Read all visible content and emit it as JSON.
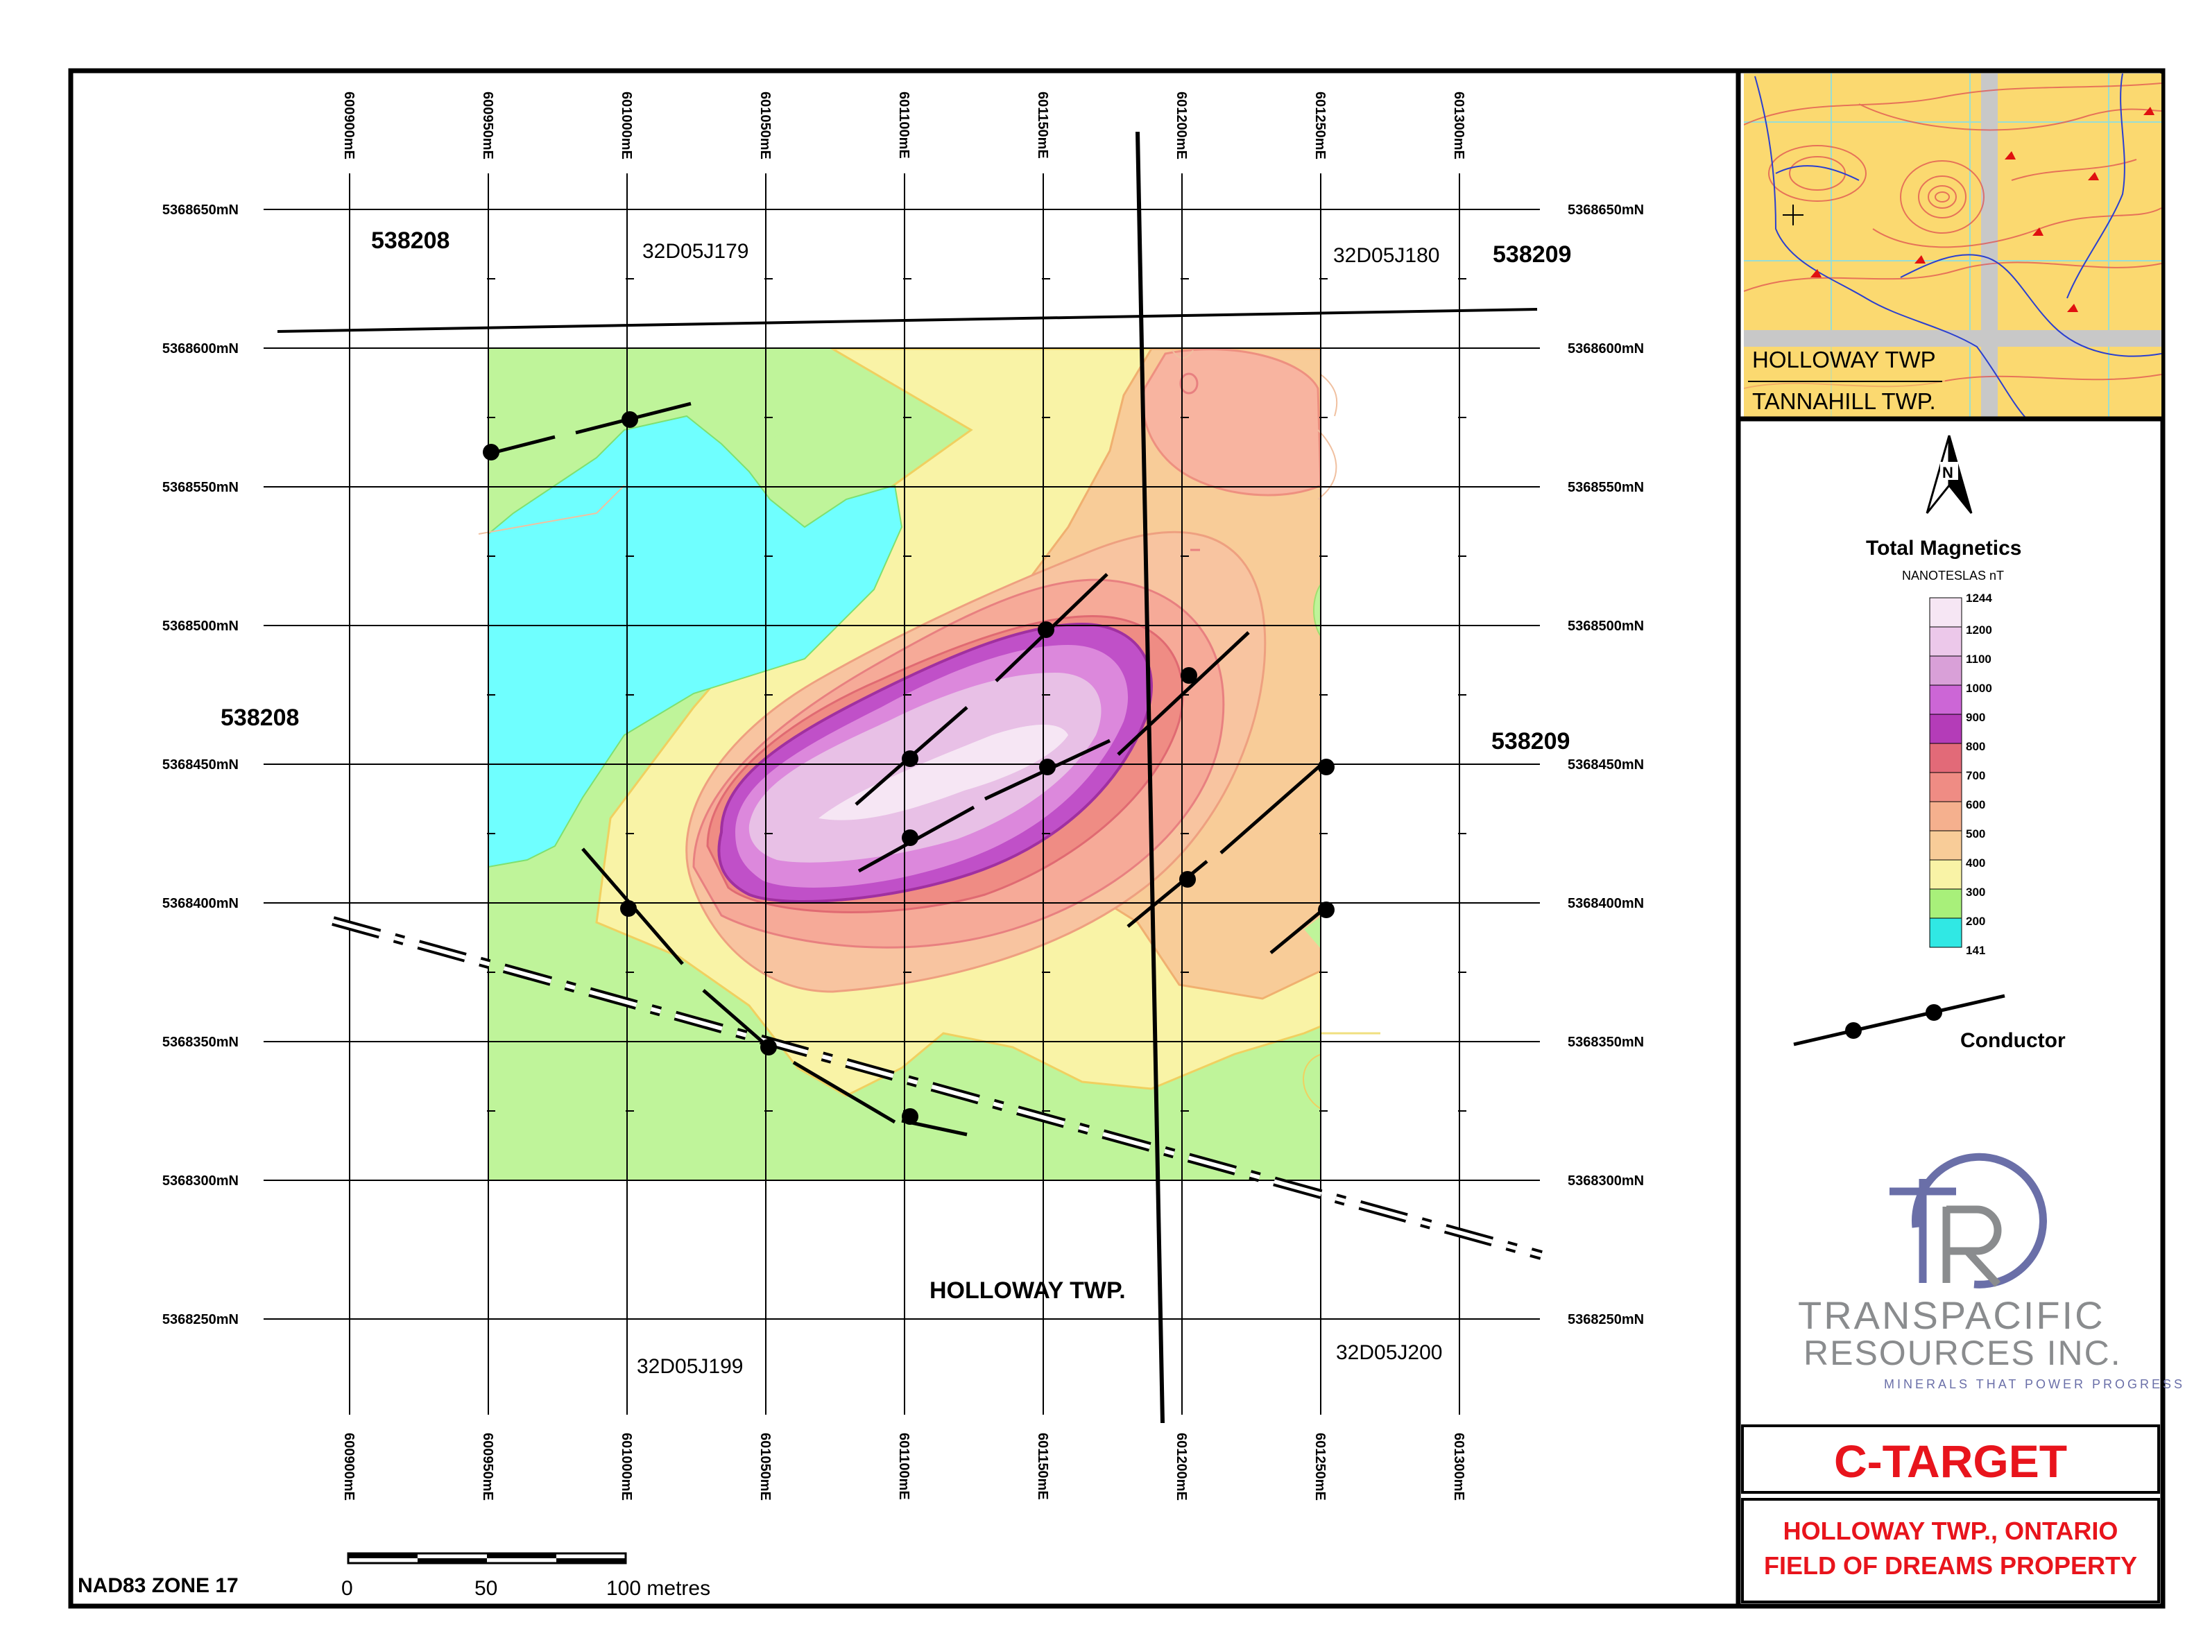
{
  "map": {
    "grid_eastings": [
      "600900mE",
      "600950mE",
      "601000mE",
      "601050mE",
      "601100mE",
      "601150mE",
      "601200mE",
      "601250mE",
      "601300mE"
    ],
    "grid_northings": [
      "5368650mN",
      "5368600mN",
      "5368550mN",
      "5368500mN",
      "5368450mN",
      "5368400mN",
      "5368350mN",
      "5368300mN",
      "5368250mN"
    ],
    "claims": {
      "c538208_top": "538208",
      "c538209_top": "538209",
      "c538208_mid": "538208",
      "c538209_mid": "538209",
      "cell_179": "32D05J179",
      "cell_180": "32D05J180",
      "cell_199": "32D05J199",
      "cell_200": "32D05J200"
    },
    "township_label": "HOLLOWAY TWP.",
    "datum": "NAD83 ZONE 17",
    "scale_bar": {
      "tick_0": "0",
      "tick_50": "50",
      "tick_100": "100 metres"
    }
  },
  "inset": {
    "label_holloway": "HOLLOWAY TWP",
    "label_tannahill": "TANNAHILL TWP."
  },
  "north_arrow": {
    "letter": "N"
  },
  "legend": {
    "title": "Total Magnetics",
    "units": "NANOTESLAS nT",
    "levels": [
      {
        "label": "1244",
        "color": "#f6e6f4"
      },
      {
        "label": "1200",
        "color": "#ecc8ea"
      },
      {
        "label": "1100",
        "color": "#d9a0d8"
      },
      {
        "label": "1000",
        "color": "#cc66d6"
      },
      {
        "label": "900",
        "color": "#b43cb8"
      },
      {
        "label": "800",
        "color": "#e26a78"
      },
      {
        "label": "700",
        "color": "#ef8c84"
      },
      {
        "label": "600",
        "color": "#f5b08e"
      },
      {
        "label": "500",
        "color": "#f8cc98"
      },
      {
        "label": "400",
        "color": "#f9f3a6"
      },
      {
        "label": "300",
        "color": "#a8f07a"
      },
      {
        "label": "200",
        "color": "#30e8e4"
      },
      {
        "label": "141",
        "color": ""
      }
    ],
    "conductor_label": "Conductor"
  },
  "logo": {
    "line1": "TRANSPACIFIC",
    "line2": "RESOURCES INC.",
    "tagline": "MINERALS THAT POWER PROGRESS"
  },
  "title_block": {
    "title": "C-TARGET",
    "subtitle1": "HOLLOWAY TWP., ONTARIO",
    "subtitle2": "FIELD OF DREAMS PROPERTY"
  },
  "colors": {
    "accent_red": "#e8141c",
    "logo_blue": "#6a6fa8",
    "logo_gray": "#8a8c8e"
  }
}
